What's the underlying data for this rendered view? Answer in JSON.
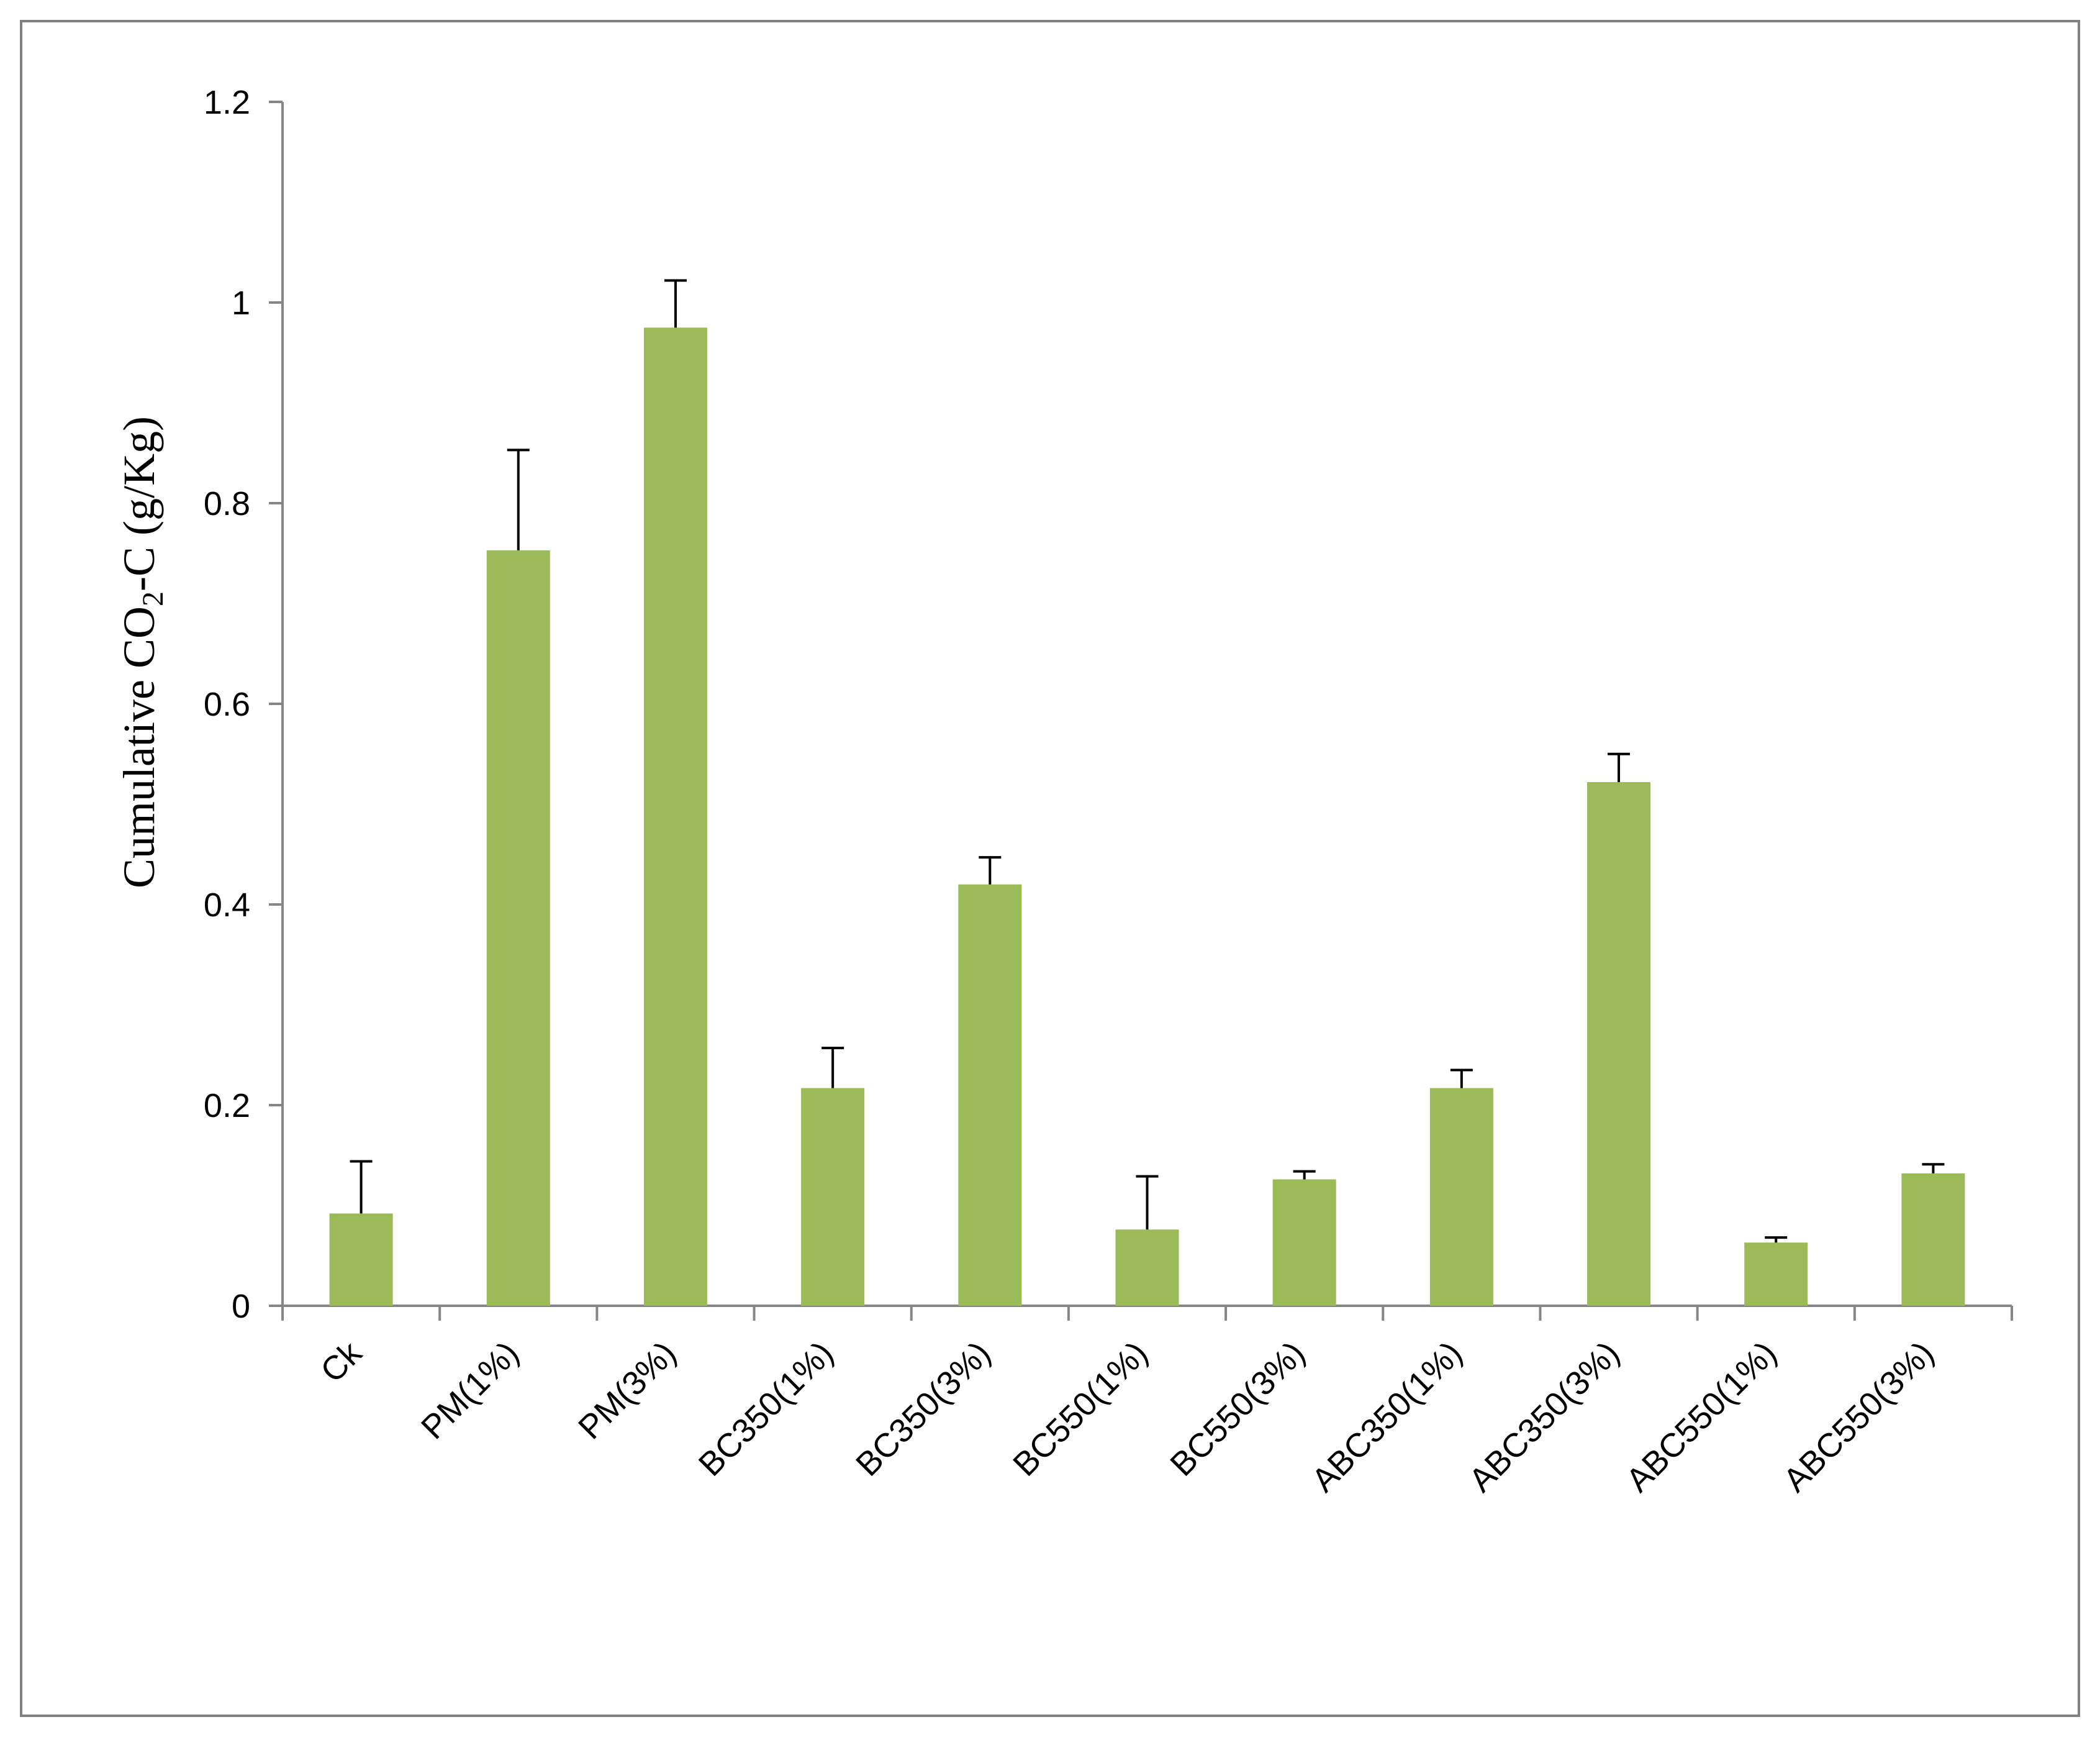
{
  "chart_data": {
    "type": "bar",
    "title": "",
    "xlabel": "",
    "ylabel": {
      "prefix": "Cumulative CO",
      "subscript": "2",
      "suffix": "-C (g/Kg)"
    },
    "ylim": [
      0,
      1.2
    ],
    "yticks": [
      {
        "value": 0,
        "label": "0"
      },
      {
        "value": 0.2,
        "label": "0.2"
      },
      {
        "value": 0.4,
        "label": "0.4"
      },
      {
        "value": 0.6,
        "label": "0.6"
      },
      {
        "value": 0.8,
        "label": "0.8"
      },
      {
        "value": 1.0,
        "label": "1"
      },
      {
        "value": 1.2,
        "label": "1.2"
      }
    ],
    "grid": false,
    "legend": "none",
    "categories": [
      "Ck",
      "PM(1%)",
      "PM(3%)",
      "BC350(1%)",
      "BC350(3%)",
      "BC550(1%)",
      "BC550(3%)",
      "ABC350(1%)",
      "ABC350(3%)",
      "ABC550(1%)",
      "ABC550(3%)"
    ],
    "values": [
      0.092,
      0.753,
      0.975,
      0.217,
      0.42,
      0.076,
      0.126,
      0.217,
      0.522,
      0.063,
      0.132
    ],
    "error_upper": [
      0.052,
      0.1,
      0.047,
      0.04,
      0.027,
      0.053,
      0.008,
      0.018,
      0.028,
      0.005,
      0.009
    ],
    "colors": {
      "bar": "#9BBB59",
      "axis": "#868686",
      "error": "#000000",
      "frame": "#808080"
    }
  }
}
